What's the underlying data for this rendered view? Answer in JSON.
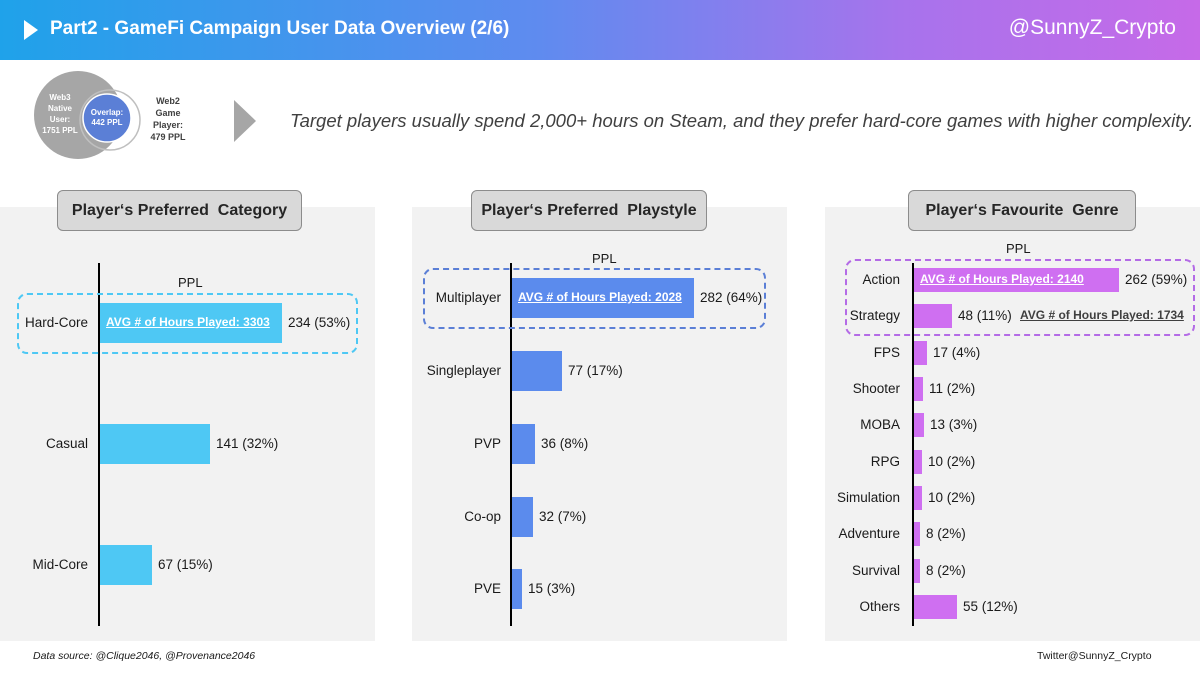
{
  "header": {
    "title": "Part2 - GameFi Campaign User Data Overview (2/6)",
    "handle": "@SunnyZ_Crypto"
  },
  "venn": {
    "web3_lines": [
      "Web3",
      "Native",
      "User:",
      "1751 PPL"
    ],
    "overlap_lines": [
      "Overlap:",
      "442 PPL"
    ],
    "web2_lines": [
      "Web2",
      "Game",
      "Player:",
      "479 PPL"
    ]
  },
  "insight": "Target players usually spend 2,000+ hours on Steam, and they prefer hard-core games with higher complexity.",
  "footer": {
    "source": "Data source: @Clique2046, @Provenance2046",
    "credit": "Twitter@SunnyZ_Crypto"
  },
  "colors": {
    "category": "#4ec8f4",
    "playstyle": "#5b8bed",
    "genre": "#cf6ff1"
  },
  "chart_data": [
    {
      "type": "bar",
      "orientation": "horizontal",
      "title": "Player‘s Preferred  Category",
      "unit": "PPL",
      "categories": [
        "Hard-Core",
        "Casual",
        "Mid-Core"
      ],
      "values": [
        234,
        141,
        67
      ],
      "value_labels": [
        "234 (53%)",
        "141 (32%)",
        "67 (15%)"
      ],
      "annotations": [
        {
          "category": "Hard-Core",
          "text": "AVG # of Hours Played: 3303"
        }
      ],
      "color": "#4ec8f4"
    },
    {
      "type": "bar",
      "orientation": "horizontal",
      "title": "Player‘s Preferred  Playstyle",
      "unit": "PPL",
      "categories": [
        "Multiplayer",
        "Singleplayer",
        "PVP",
        "Co-op",
        "PVE"
      ],
      "values": [
        282,
        77,
        36,
        32,
        15
      ],
      "value_labels": [
        "282 (64%)",
        "77 (17%)",
        "36 (8%)",
        "32 (7%)",
        "15 (3%)"
      ],
      "annotations": [
        {
          "category": "Multiplayer",
          "text": "AVG # of Hours Played: 2028"
        }
      ],
      "color": "#5b8bed"
    },
    {
      "type": "bar",
      "orientation": "horizontal",
      "title": "Player‘s Favourite  Genre",
      "unit": "PPL",
      "categories": [
        "Action",
        "Strategy",
        "FPS",
        "Shooter",
        "MOBA",
        "RPG",
        "Simulation",
        "Adventure",
        "Survival",
        "Others"
      ],
      "values": [
        262,
        48,
        17,
        11,
        13,
        10,
        10,
        8,
        8,
        55
      ],
      "value_labels": [
        "262 (59%)",
        "48 (11%)",
        "17 (4%)",
        "11 (2%)",
        "13 (3%)",
        "10 (2%)",
        "10 (2%)",
        "8 (2%)",
        "8 (2%)",
        "55 (12%)"
      ],
      "annotations": [
        {
          "category": "Action",
          "text": "AVG # of Hours Played: 2140"
        },
        {
          "category": "Strategy",
          "text": "AVG # of Hours Played: 1734"
        }
      ],
      "color": "#cf6ff1"
    }
  ]
}
